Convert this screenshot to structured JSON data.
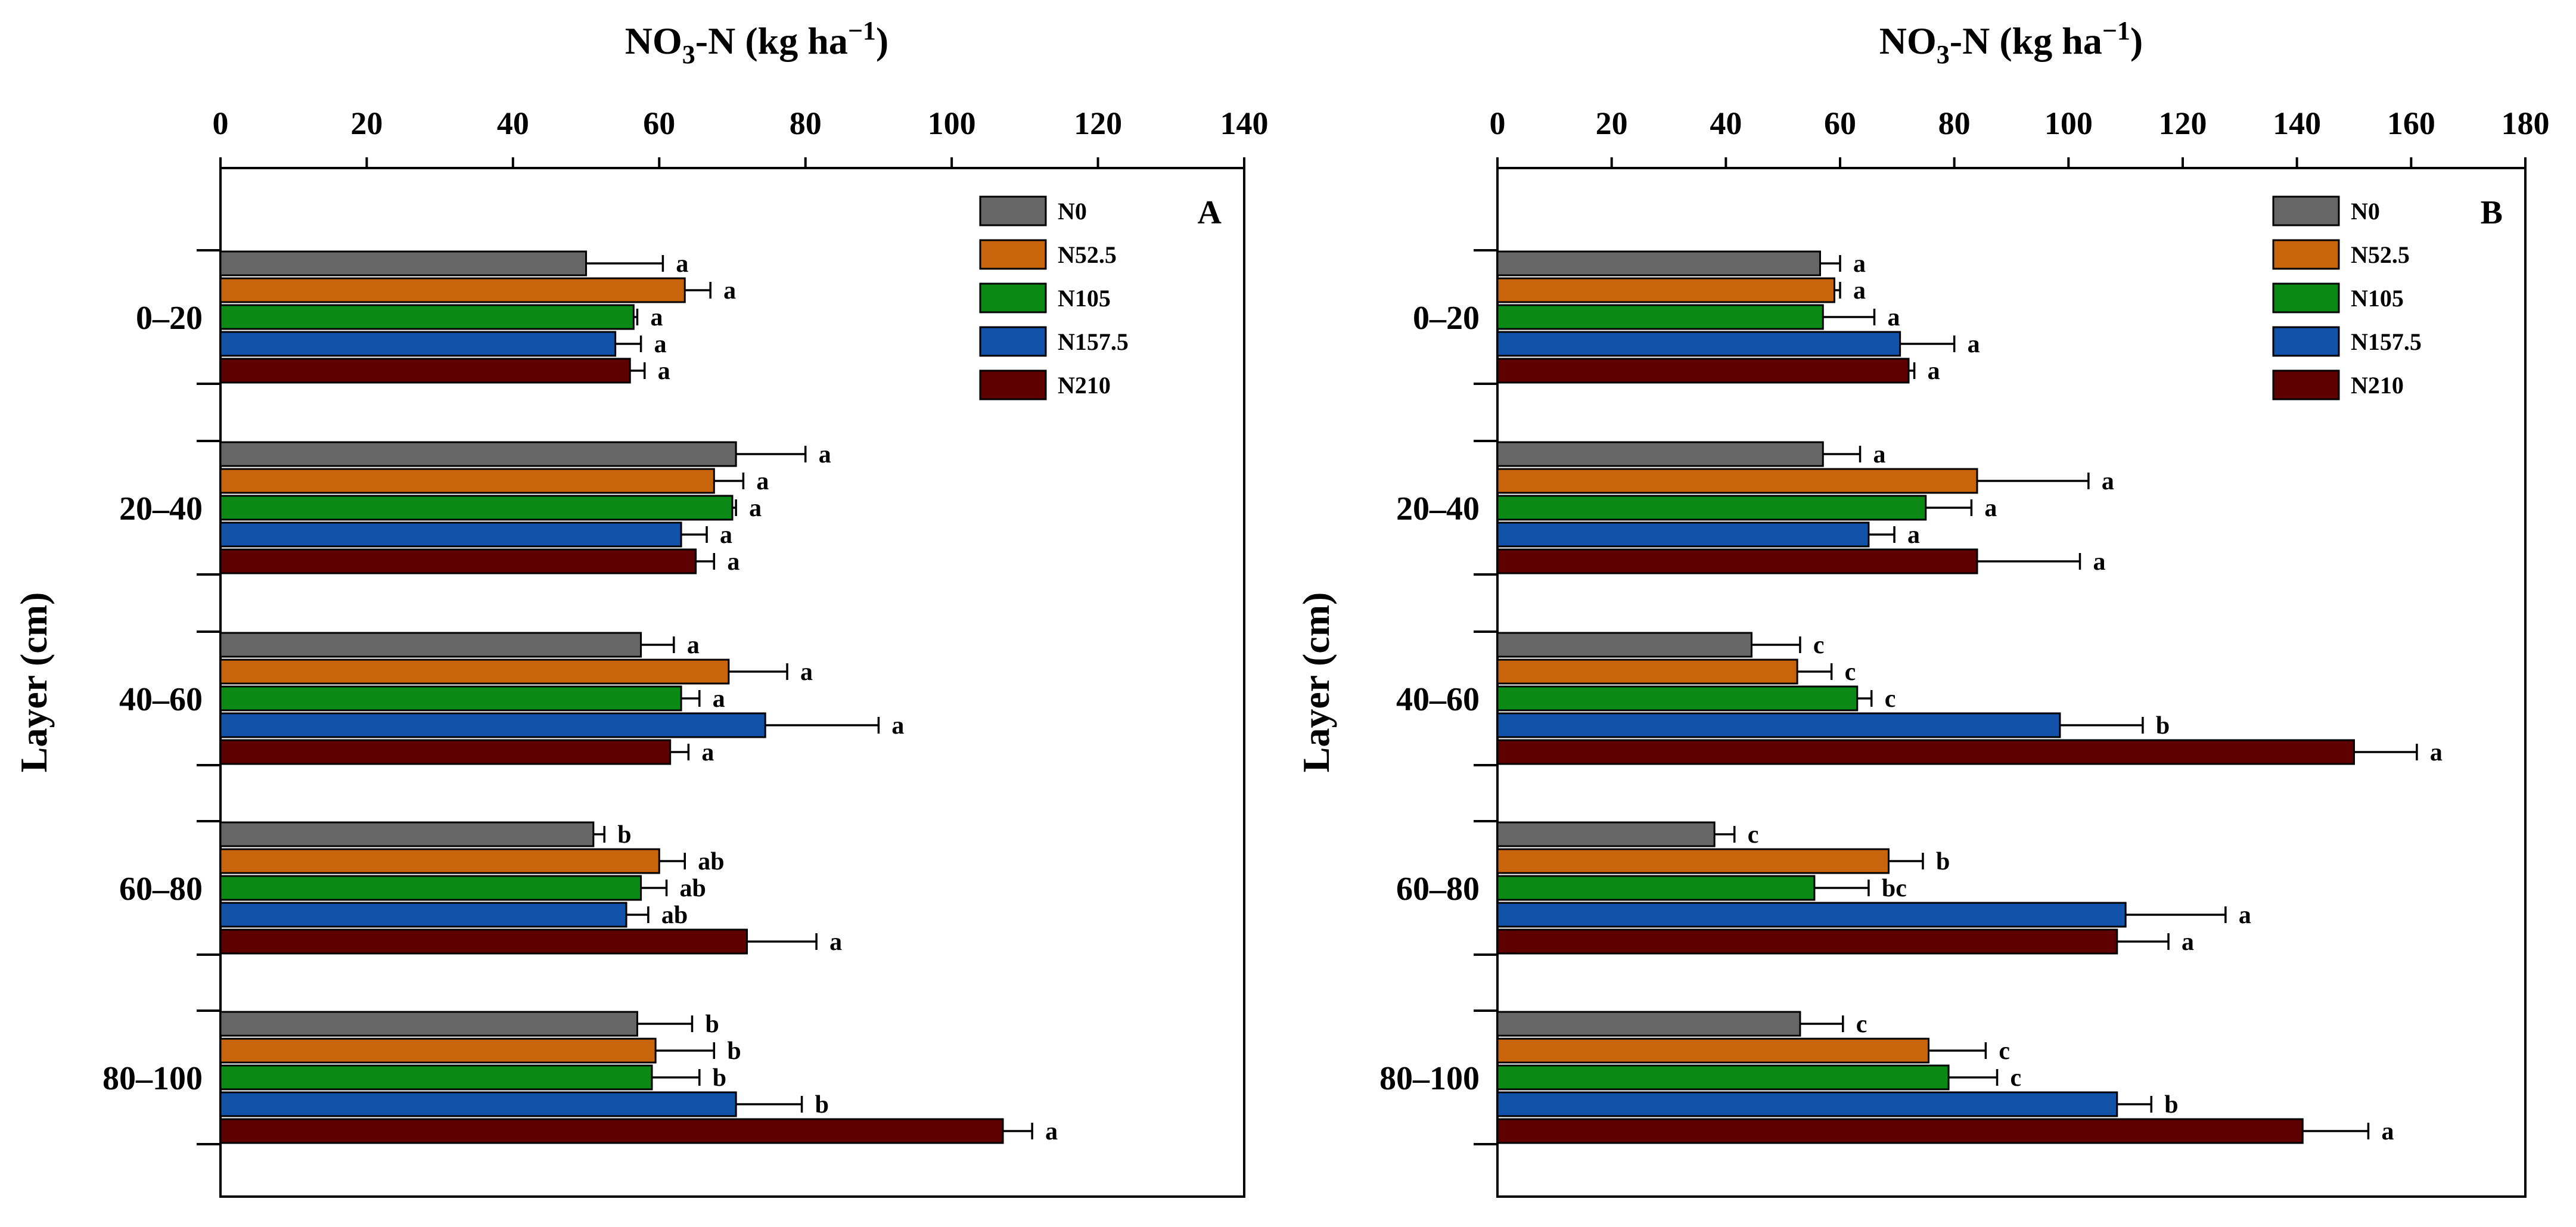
{
  "colors": {
    "N0": "#666666",
    "N52.5": "#c8650c",
    "N105": "#0a8a14",
    "N157.5": "#1252a8",
    "N210": "#5e0000"
  },
  "chart_data": [
    {
      "type": "bar",
      "orientation": "horizontal",
      "panel_label": "A",
      "xlabel_main": "NO",
      "xlabel_sub": "3",
      "xlabel_rest": "-N (kg ha",
      "xlabel_sup": "−1",
      "xlabel_close": ")",
      "ylabel": "Layer (cm)",
      "xlim": [
        0,
        140
      ],
      "xticks": [
        0,
        20,
        40,
        60,
        80,
        100,
        120,
        140
      ],
      "categories": [
        "0–20",
        "20–40",
        "40–60",
        "60–80",
        "80–100"
      ],
      "legend": {
        "position": "top-right"
      },
      "series": [
        {
          "name": "N0",
          "values": [
            50,
            70.5,
            57.5,
            51,
            57
          ],
          "errors": [
            10.5,
            9.5,
            4.5,
            1.5,
            7.5
          ],
          "letters": [
            "a",
            "a",
            "a",
            "b",
            "b"
          ]
        },
        {
          "name": "N52.5",
          "values": [
            63.5,
            67.5,
            69.5,
            60,
            59.5
          ],
          "errors": [
            3.5,
            4,
            8,
            3.5,
            8
          ],
          "letters": [
            "a",
            "a",
            "a",
            "ab",
            "b"
          ]
        },
        {
          "name": "N105",
          "values": [
            56.5,
            70,
            63,
            57.5,
            59
          ],
          "errors": [
            0.5,
            0.5,
            2.5,
            3.5,
            6.5
          ],
          "letters": [
            "a",
            "a",
            "a",
            "ab",
            "b"
          ]
        },
        {
          "name": "N157.5",
          "values": [
            54,
            63,
            74.5,
            55.5,
            70.5
          ],
          "errors": [
            3.5,
            3.5,
            15.5,
            3,
            9
          ],
          "letters": [
            "a",
            "a",
            "a",
            "ab",
            "b"
          ]
        },
        {
          "name": "N210",
          "values": [
            56,
            65,
            61.5,
            72,
            107
          ],
          "errors": [
            2,
            2.5,
            2.5,
            9.5,
            4
          ],
          "letters": [
            "a",
            "a",
            "a",
            "a",
            "a"
          ]
        }
      ]
    },
    {
      "type": "bar",
      "orientation": "horizontal",
      "panel_label": "B",
      "xlabel_main": "NO",
      "xlabel_sub": "3",
      "xlabel_rest": "-N (kg ha",
      "xlabel_sup": "−1",
      "xlabel_close": ")",
      "ylabel": "Layer (cm)",
      "xlim": [
        0,
        180
      ],
      "xticks": [
        0,
        20,
        40,
        60,
        80,
        100,
        120,
        140,
        160,
        180
      ],
      "categories": [
        "0–20",
        "20–40",
        "40–60",
        "60–80",
        "80–100"
      ],
      "legend": {
        "position": "top-right"
      },
      "series": [
        {
          "name": "N0",
          "values": [
            56.5,
            57,
            44.5,
            38,
            53
          ],
          "errors": [
            3.5,
            6.5,
            8.5,
            3.5,
            7.5
          ],
          "letters": [
            "a",
            "a",
            "c",
            "c",
            "c"
          ]
        },
        {
          "name": "N52.5",
          "values": [
            59,
            84,
            52.5,
            68.5,
            75.5
          ],
          "errors": [
            1,
            19.5,
            6,
            6,
            10
          ],
          "letters": [
            "a",
            "a",
            "c",
            "b",
            "c"
          ]
        },
        {
          "name": "N105",
          "values": [
            57,
            75,
            63,
            55.5,
            79
          ],
          "errors": [
            9,
            8,
            2.5,
            9.5,
            8.5
          ],
          "letters": [
            "a",
            "a",
            "c",
            "bc",
            "c"
          ]
        },
        {
          "name": "N157.5",
          "values": [
            70.5,
            65,
            98.5,
            110,
            108.5
          ],
          "errors": [
            9.5,
            4.5,
            14.5,
            17.5,
            6
          ],
          "letters": [
            "a",
            "a",
            "b",
            "a",
            "b"
          ]
        },
        {
          "name": "N210",
          "values": [
            72,
            84,
            150,
            108.5,
            141
          ],
          "errors": [
            1,
            18,
            11,
            9,
            11.5
          ],
          "letters": [
            "a",
            "a",
            "a",
            "a",
            "a"
          ]
        }
      ]
    }
  ]
}
